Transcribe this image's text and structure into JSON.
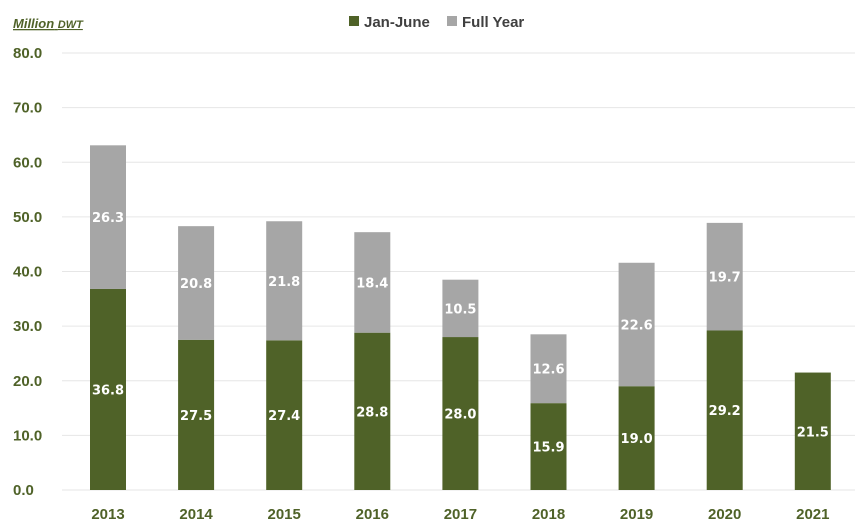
{
  "chart_data": {
    "type": "bar",
    "stacked": true,
    "ylabel": "Million DWT",
    "ylabel_main": "Million",
    "ylabel_unit": "DWT",
    "ylim": [
      0,
      80
    ],
    "yticks": [
      0,
      10,
      20,
      30,
      40,
      50,
      60,
      70,
      80
    ],
    "ytick_labels": [
      "0.0",
      "10.0",
      "20.0",
      "30.0",
      "40.0",
      "50.0",
      "60.0",
      "70.0",
      "80.0"
    ],
    "grid": true,
    "legend_position": "top-center",
    "categories": [
      "2013",
      "2014",
      "2015",
      "2016",
      "2017",
      "2018",
      "2019",
      "2020",
      "2021"
    ],
    "series": [
      {
        "name": "Jan-June",
        "color": "#4f6228",
        "values": [
          36.8,
          27.5,
          27.4,
          28.8,
          28.0,
          15.9,
          19.0,
          29.2,
          21.5
        ],
        "labels": [
          "36.8",
          "27.5",
          "27.4",
          "28.8",
          "28.0",
          "15.9",
          "19.0",
          "29.2",
          "21.5"
        ]
      },
      {
        "name": "Full Year",
        "color": "#a6a6a6",
        "values": [
          26.3,
          20.8,
          21.8,
          18.4,
          10.5,
          12.6,
          22.6,
          19.7,
          null
        ],
        "labels": [
          "26.3",
          "20.8",
          "21.8",
          "18.4",
          "10.5",
          "12.6",
          "22.6",
          "19.7",
          null
        ]
      }
    ]
  }
}
